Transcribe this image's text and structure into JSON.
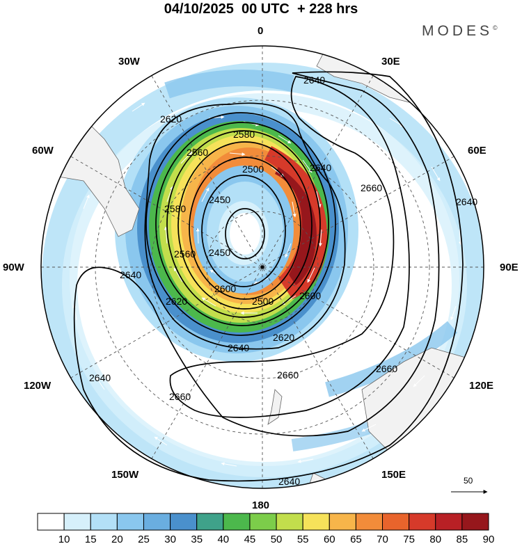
{
  "header": {
    "title": "04/10/2025  00 UTC  + 228 hrs",
    "brand": "MODES",
    "brand_mark": "©"
  },
  "map": {
    "projection": "south polar stereographic",
    "longitude_labels": {
      "lon_0": "0",
      "lon_30e": "30E",
      "lon_60e": "60E",
      "lon_90e": "90E",
      "lon_120e": "120E",
      "lon_150e": "150E",
      "lon_180": "180",
      "lon_150w": "150W",
      "lon_120w": "120W",
      "lon_90w": "90W",
      "lon_60w": "60W",
      "lon_30w": "30W"
    },
    "contour_field": "geopotential height (m)",
    "contour_labels": {
      "c1": "2640",
      "c2": "2620",
      "c3": "2580",
      "c4": "2560",
      "c5": "2500",
      "c6": "2640",
      "c7": "2660",
      "c8": "2640",
      "c9": "2580",
      "c10": "2450",
      "c11": "2450",
      "c12": "2560",
      "c13": "2640",
      "c14": "2620",
      "c15": "2500",
      "c16": "2600",
      "c17": "2620",
      "c18": "2640",
      "c19": "2660",
      "c20": "2660",
      "c21": "2640",
      "c22": "2660",
      "c23": "2640",
      "c24": "2600"
    },
    "colors": {
      "land": "#f2f2f2",
      "grid": "#555555",
      "contour": "#000000",
      "vector": "#ffffff"
    },
    "vector_reference": {
      "value": "50"
    }
  },
  "colorbar": {
    "ticks": [
      "10",
      "15",
      "20",
      "25",
      "30",
      "35",
      "40",
      "45",
      "50",
      "55",
      "60",
      "65",
      "70",
      "75",
      "80",
      "85",
      "90"
    ],
    "colors": [
      "#ffffff",
      "#d6f0fb",
      "#b3e0f7",
      "#8ac7ee",
      "#6aaee0",
      "#4a90cc",
      "#3fa28a",
      "#4cb84c",
      "#7ccd4a",
      "#c2de4c",
      "#f6e25a",
      "#f7b54a",
      "#f28c3a",
      "#e8642c",
      "#d63a2a",
      "#b82025",
      "#96171c"
    ]
  }
}
